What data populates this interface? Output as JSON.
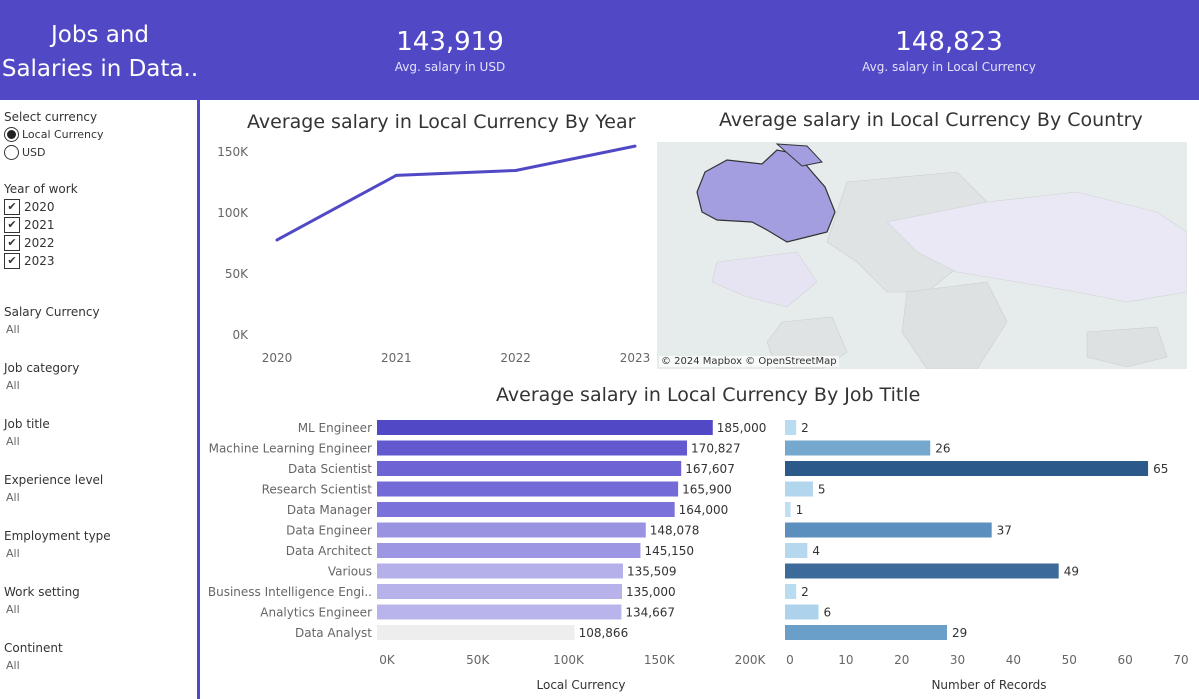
{
  "header": {
    "title_line1": "Jobs and",
    "title_line2": "Salaries in Data..",
    "kpi_usd": {
      "value": "143,919",
      "label": "Avg. salary in USD"
    },
    "kpi_local": {
      "value": "148,823",
      "label": "Avg. salary in Local Currency"
    }
  },
  "sidebar": {
    "currency": {
      "title": "Select currency",
      "options": [
        "Local Currency",
        "USD"
      ],
      "selected": "Local Currency"
    },
    "year": {
      "title": "Year of work",
      "options": [
        "2020",
        "2021",
        "2022",
        "2023"
      ]
    },
    "filters": [
      {
        "title": "Salary Currency",
        "value": "All"
      },
      {
        "title": "Job category",
        "value": "All"
      },
      {
        "title": "Job title",
        "value": "All"
      },
      {
        "title": "Experience level",
        "value": "All"
      },
      {
        "title": "Employment type",
        "value": "All"
      },
      {
        "title": "Work setting",
        "value": "All"
      },
      {
        "title": "Continent",
        "value": "All"
      }
    ]
  },
  "line_title": "Average salary in Local Currency By Year",
  "map_title": "Average salary in Local Currency By Country",
  "map_attribution": "© 2024 Mapbox © OpenStreetMap",
  "bar_title": "Average salary in Local Currency By Job Title",
  "colors": {
    "accent": "#5148c6",
    "line": "#5148c6"
  },
  "chart_data": [
    {
      "type": "line",
      "title": "Average salary in Local Currency By Year",
      "x": [
        "2020",
        "2021",
        "2022",
        "2023"
      ],
      "values": [
        78000,
        131000,
        135000,
        155000
      ],
      "ylim": [
        0,
        160000
      ],
      "yticks": [
        "0K",
        "50K",
        "100K",
        "150K"
      ],
      "ytick_values": [
        0,
        50000,
        100000,
        150000
      ]
    },
    {
      "type": "bar",
      "orientation": "horizontal",
      "xlabel": "Local Currency",
      "categories": [
        "ML Engineer",
        "Machine Learning Engineer",
        "Data Scientist",
        "Research Scientist",
        "Data Manager",
        "Data Engineer",
        "Data Architect",
        "Various",
        "Business Intelligence Engi..",
        "Analytics Engineer",
        "Data Analyst"
      ],
      "values": [
        185000,
        170827,
        167607,
        165900,
        164000,
        148078,
        145150,
        135509,
        135000,
        134667,
        108866
      ],
      "value_labels": [
        "185,000",
        "170,827",
        "167,607",
        "165,900",
        "164,000",
        "148,078",
        "145,150",
        "135,509",
        "135,000",
        "134,667",
        "108,866"
      ],
      "colors": [
        "#5148c6",
        "#6359cf",
        "#6d63d4",
        "#736ad8",
        "#7a72da",
        "#9a93e2",
        "#9d96e3",
        "#b5b0ea",
        "#b7b2ea",
        "#b9b4eb",
        "#eeeeee"
      ],
      "xlim": [
        0,
        200000
      ],
      "xticks": [
        "0K",
        "50K",
        "100K",
        "150K",
        "200K"
      ],
      "xtick_values": [
        0,
        50000,
        100000,
        150000,
        200000
      ]
    },
    {
      "type": "bar",
      "orientation": "horizontal",
      "xlabel": "Number of Records",
      "categories": [
        "ML Engineer",
        "Machine Learning Engineer",
        "Data Scientist",
        "Research Scientist",
        "Data Manager",
        "Data Engineer",
        "Data Architect",
        "Various",
        "Business Intelligence Engi..",
        "Analytics Engineer",
        "Data Analyst"
      ],
      "values": [
        2,
        26,
        65,
        5,
        1,
        37,
        4,
        49,
        2,
        6,
        29
      ],
      "colors": [
        "#b9dcf0",
        "#74a8cf",
        "#2b5a8a",
        "#b2d6ee",
        "#bfe0f2",
        "#5a8fbe",
        "#b5d8ef",
        "#3d6b99",
        "#b9dcf0",
        "#acd2ec",
        "#6a9fca"
      ],
      "xlim": [
        0,
        70
      ],
      "xticks": [
        "0",
        "10",
        "20",
        "30",
        "40",
        "50",
        "60",
        "70"
      ],
      "xtick_values": [
        0,
        10,
        20,
        30,
        40,
        50,
        60,
        70
      ]
    }
  ]
}
